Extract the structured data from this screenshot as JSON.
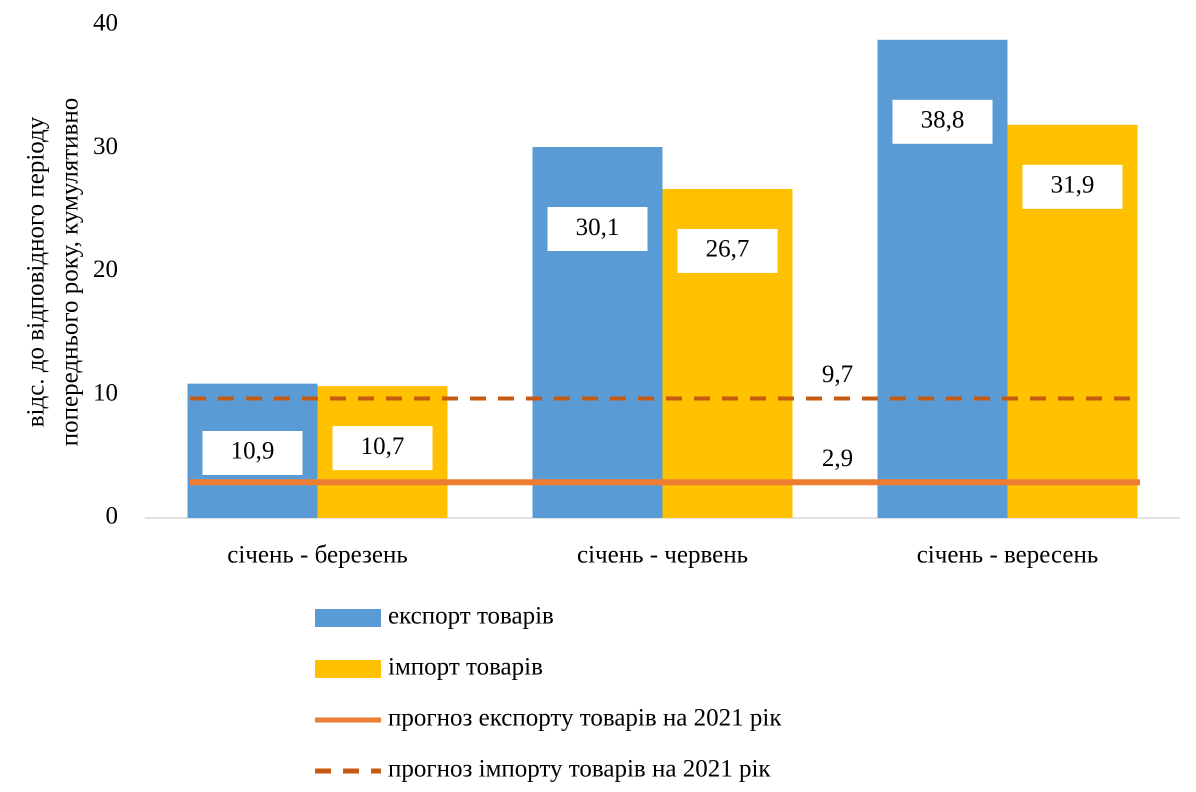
{
  "chart_data": {
    "type": "bar",
    "ylabel": [
      "відс. до відповідного періоду",
      "попереднього року, кумулятивно"
    ],
    "categories": [
      "січень - березень",
      "січень - червень",
      "січень - вересень"
    ],
    "ylim": [
      0,
      40
    ],
    "yticks": [
      0,
      10,
      20,
      30,
      40
    ],
    "series": [
      {
        "name": "експорт товарів",
        "type": "bar",
        "color": "#5b9bd5",
        "values": [
          10.9,
          30.1,
          38.8
        ],
        "value_labels": [
          "10,9",
          "30,1",
          "38,8"
        ]
      },
      {
        "name": "імпорт товарів",
        "type": "bar",
        "color": "#ffc000",
        "values": [
          10.7,
          26.7,
          31.9
        ],
        "value_labels": [
          "10,7",
          "26,7",
          "31,9"
        ]
      },
      {
        "name": "прогноз експорту товарів на 2021 рік",
        "type": "line",
        "dash": false,
        "color": "#ed7d31",
        "values": [
          2.9,
          2.9,
          2.9
        ],
        "value_labels": [
          null,
          "2,9",
          null
        ]
      },
      {
        "name": "прогноз імпорту товарів на 2021 рік",
        "type": "line",
        "dash": true,
        "color": "#c55a11",
        "values": [
          9.7,
          9.7,
          9.7
        ],
        "value_labels": [
          null,
          "9,7",
          null
        ]
      }
    ]
  }
}
